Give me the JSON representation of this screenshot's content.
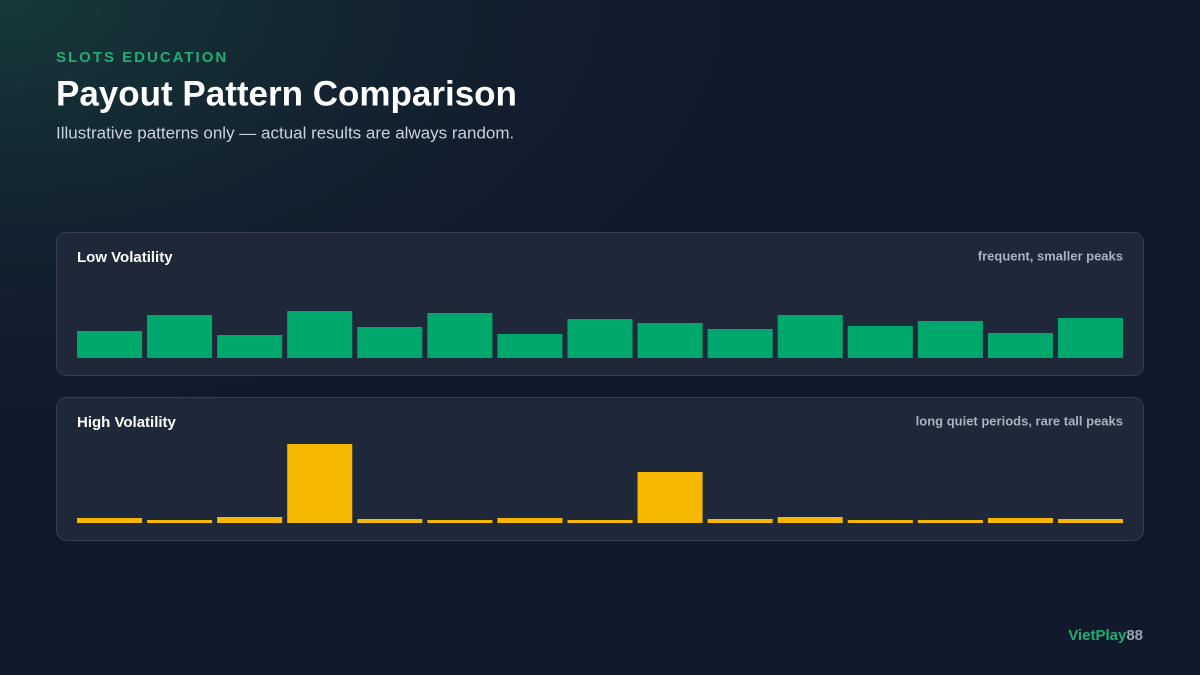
{
  "header": {
    "eyebrow": "SLOTS EDUCATION",
    "title": "Payout Pattern Comparison",
    "subtitle": "Illustrative patterns only — actual results are always random."
  },
  "chart_data": [
    {
      "type": "bar",
      "title": "Low Volatility",
      "annotation": "frequent, smaller peaks",
      "color": "#00a86b",
      "values": [
        27,
        43,
        23,
        47,
        31,
        45,
        24,
        39,
        35,
        29,
        43,
        32,
        37,
        25,
        40
      ],
      "ylim": [
        0,
        80
      ]
    },
    {
      "type": "bar",
      "title": "High Volatility",
      "annotation": "long quiet periods, rare tall peaks",
      "color": "#f5b700",
      "values": [
        5,
        3,
        6,
        79,
        4,
        3,
        5,
        3,
        51,
        4,
        6,
        3,
        3,
        5,
        4
      ],
      "ylim": [
        0,
        80
      ]
    }
  ],
  "footer": {
    "brand": "VietPlay",
    "brand_number": "88"
  }
}
